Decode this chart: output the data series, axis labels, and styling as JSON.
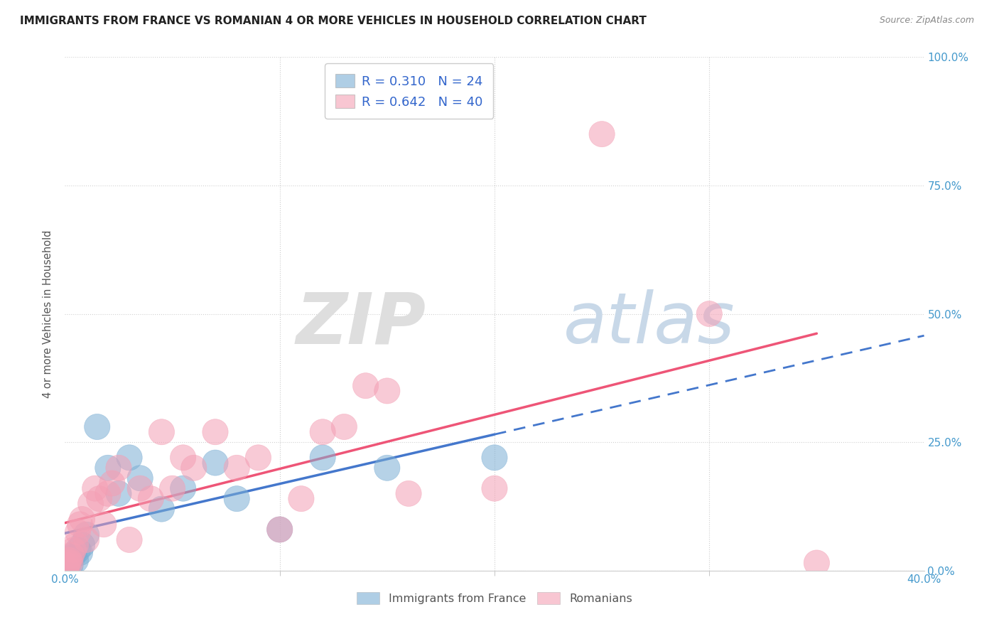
{
  "title": "IMMIGRANTS FROM FRANCE VS ROMANIAN 4 OR MORE VEHICLES IN HOUSEHOLD CORRELATION CHART",
  "source": "Source: ZipAtlas.com",
  "ylabel": "4 or more Vehicles in Household",
  "xlim": [
    0.0,
    40.0
  ],
  "ylim": [
    0.0,
    100.0
  ],
  "yticks": [
    0.0,
    25.0,
    50.0,
    75.0,
    100.0
  ],
  "xtick_labels_visible": [
    "0.0%",
    "40.0%"
  ],
  "xtick_positions_visible": [
    0.0,
    40.0
  ],
  "xtick_minor": [
    10.0,
    20.0,
    30.0
  ],
  "france_color": "#7BAED4",
  "romania_color": "#F4A0B5",
  "france_line_color": "#4477CC",
  "romania_line_color": "#EE5577",
  "france_R": 0.31,
  "france_N": 24,
  "romania_R": 0.642,
  "romania_N": 40,
  "watermark_zip": "ZIP",
  "watermark_atlas": "atlas",
  "legend_label_france": "Immigrants from France",
  "legend_label_romania": "Romanians",
  "tick_label_color": "#4499CC",
  "right_tick_color": "#4499CC",
  "france_x": [
    0.1,
    0.15,
    0.2,
    0.25,
    0.3,
    0.4,
    0.5,
    0.6,
    0.7,
    0.8,
    1.0,
    1.5,
    2.0,
    2.5,
    3.0,
    3.5,
    4.5,
    5.5,
    7.0,
    8.0,
    10.0,
    12.0,
    15.0,
    20.0
  ],
  "france_y": [
    1.0,
    1.5,
    2.0,
    1.0,
    2.5,
    3.0,
    2.0,
    4.0,
    3.5,
    5.0,
    7.0,
    28.0,
    20.0,
    15.0,
    22.0,
    18.0,
    12.0,
    16.0,
    21.0,
    14.0,
    8.0,
    22.0,
    20.0,
    22.0
  ],
  "romania_x": [
    0.05,
    0.1,
    0.15,
    0.2,
    0.25,
    0.3,
    0.4,
    0.5,
    0.6,
    0.7,
    0.8,
    1.0,
    1.2,
    1.4,
    1.6,
    1.8,
    2.0,
    2.2,
    2.5,
    3.0,
    3.5,
    4.0,
    4.5,
    5.0,
    5.5,
    6.0,
    7.0,
    8.0,
    9.0,
    10.0,
    11.0,
    12.0,
    13.0,
    14.0,
    15.0,
    16.0,
    20.0,
    25.0,
    30.0,
    35.0
  ],
  "romania_y": [
    0.5,
    1.0,
    1.5,
    2.0,
    1.5,
    3.0,
    4.0,
    5.0,
    7.5,
    9.0,
    10.0,
    6.0,
    13.0,
    16.0,
    14.0,
    9.0,
    15.0,
    17.0,
    20.0,
    6.0,
    16.0,
    14.0,
    27.0,
    16.0,
    22.0,
    20.0,
    27.0,
    20.0,
    22.0,
    8.0,
    14.0,
    27.0,
    28.0,
    36.0,
    35.0,
    15.0,
    16.0,
    85.0,
    50.0,
    1.5
  ],
  "france_solid_end": 20.0,
  "romania_line_end": 35.0,
  "line_extend_to": 40.0
}
